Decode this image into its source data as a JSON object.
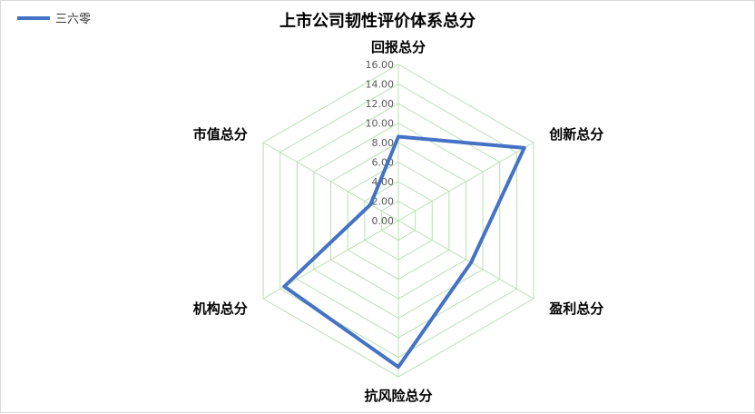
{
  "chart_data": {
    "type": "radar",
    "title": "上市公司韧性评价体系总分",
    "axes": [
      "回报总分",
      "创新总分",
      "盈利总分",
      "抗风险总分",
      "机构总分",
      "市值总分"
    ],
    "rlim": [
      0,
      16
    ],
    "ticks": [
      "0.00",
      "2.00",
      "4.00",
      "6.00",
      "8.00",
      "10.00",
      "12.00",
      "14.00",
      "16.00"
    ],
    "series": [
      {
        "name": "三六零",
        "values": [
          8.6,
          14.9,
          8.6,
          15.0,
          13.5,
          3.3
        ]
      }
    ],
    "legend": "top-left",
    "grid": true
  },
  "colors": {
    "series": "#4472C4",
    "grid": "#b7e0b0",
    "tick_text": "#595959"
  }
}
